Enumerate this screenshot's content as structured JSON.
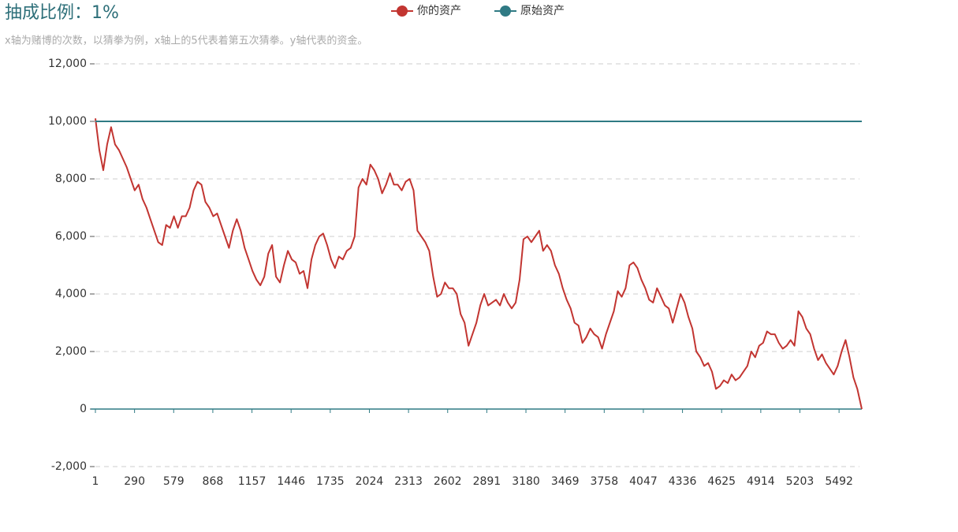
{
  "chart_data": {
    "type": "line",
    "title": "抽成比例：1%",
    "subtitle": "x轴为赌博的次数，以猜拳为例，x轴上的5代表着第五次猜拳。y轴代表的资金。",
    "xlim": [
      1,
      5660
    ],
    "xticks": [
      1,
      290,
      579,
      868,
      1157,
      1446,
      1735,
      2024,
      2313,
      2602,
      2891,
      3180,
      3469,
      3758,
      4047,
      4336,
      4625,
      4914,
      5203,
      5492
    ],
    "ylim": [
      -2000,
      12000
    ],
    "yticks": [
      {
        "value": -2000,
        "label": "-2,000"
      },
      0,
      {
        "value": 2000,
        "label": "2,000"
      },
      {
        "value": 4000,
        "label": "4,000"
      },
      {
        "value": 6000,
        "label": "6,000"
      },
      {
        "value": 8000,
        "label": "8,000"
      },
      {
        "value": 10000,
        "label": "10,000"
      },
      {
        "value": 12000,
        "label": "12,000"
      }
    ],
    "grid": true,
    "legend": "top",
    "series": [
      {
        "name": "你的资产",
        "color": "#c23531",
        "x": [
          1,
          30,
          59,
          88,
          117,
          146,
          175,
          204,
          233,
          262,
          291,
          320,
          349,
          378,
          407,
          436,
          465,
          494,
          523,
          552,
          581,
          610,
          639,
          668,
          697,
          726,
          755,
          784,
          813,
          842,
          871,
          900,
          929,
          958,
          987,
          1016,
          1045,
          1074,
          1103,
          1132,
          1161,
          1190,
          1219,
          1248,
          1277,
          1306,
          1335,
          1364,
          1393,
          1422,
          1451,
          1480,
          1509,
          1538,
          1567,
          1596,
          1625,
          1654,
          1683,
          1712,
          1741,
          1770,
          1799,
          1828,
          1857,
          1886,
          1915,
          1944,
          1973,
          2002,
          2031,
          2060,
          2089,
          2118,
          2147,
          2176,
          2205,
          2234,
          2263,
          2292,
          2321,
          2350,
          2379,
          2408,
          2437,
          2466,
          2495,
          2524,
          2553,
          2582,
          2611,
          2640,
          2669,
          2698,
          2727,
          2756,
          2785,
          2814,
          2843,
          2872,
          2901,
          2930,
          2959,
          2988,
          3017,
          3046,
          3075,
          3104,
          3133,
          3162,
          3191,
          3220,
          3249,
          3278,
          3307,
          3336,
          3365,
          3394,
          3423,
          3452,
          3481,
          3510,
          3539,
          3568,
          3597,
          3626,
          3655,
          3684,
          3713,
          3742,
          3771,
          3800,
          3829,
          3858,
          3887,
          3916,
          3945,
          3974,
          4003,
          4032,
          4061,
          4090,
          4119,
          4148,
          4177,
          4206,
          4235,
          4264,
          4293,
          4322,
          4351,
          4380,
          4409,
          4438,
          4467,
          4496,
          4525,
          4554,
          4583,
          4612,
          4641,
          4670,
          4699,
          4728,
          4757,
          4786,
          4815,
          4844,
          4873,
          4902,
          4931,
          4960,
          4989,
          5018,
          5047,
          5076,
          5105,
          5134,
          5163,
          5192,
          5221,
          5250,
          5279,
          5308,
          5337,
          5366,
          5395,
          5424,
          5453,
          5482,
          5511,
          5540,
          5569,
          5598,
          5627,
          5660
        ],
        "values": [
          10100,
          9000,
          8300,
          9200,
          9800,
          9200,
          9000,
          8700,
          8400,
          8000,
          7600,
          7800,
          7300,
          7000,
          6600,
          6200,
          5800,
          5700,
          6400,
          6300,
          6700,
          6300,
          6700,
          6700,
          7000,
          7600,
          7900,
          7800,
          7200,
          7000,
          6700,
          6800,
          6400,
          6000,
          5600,
          6200,
          6600,
          6200,
          5600,
          5200,
          4800,
          4500,
          4300,
          4600,
          5400,
          5700,
          4600,
          4400,
          5000,
          5500,
          5200,
          5100,
          4700,
          4800,
          4200,
          5200,
          5700,
          6000,
          6100,
          5700,
          5200,
          4900,
          5300,
          5200,
          5500,
          5600,
          6000,
          7700,
          8000,
          7800,
          8500,
          8300,
          8000,
          7500,
          7800,
          8200,
          7800,
          7800,
          7600,
          7900,
          8000,
          7600,
          6200,
          6000,
          5800,
          5500,
          4600,
          3900,
          4000,
          4400,
          4200,
          4200,
          4000,
          3300,
          3000,
          2200,
          2600,
          3000,
          3600,
          4000,
          3600,
          3700,
          3800,
          3600,
          4000,
          3700,
          3500,
          3700,
          4500,
          5900,
          6000,
          5800,
          6000,
          6200,
          5500,
          5700,
          5500,
          5000,
          4700,
          4200,
          3800,
          3500,
          3000,
          2900,
          2300,
          2500,
          2800,
          2600,
          2500,
          2100,
          2600,
          3000,
          3400,
          4100,
          3900,
          4200,
          5000,
          5100,
          4900,
          4500,
          4200,
          3800,
          3700,
          4200,
          3900,
          3600,
          3500,
          3000,
          3500,
          4000,
          3700,
          3200,
          2800,
          2000,
          1800,
          1500,
          1600,
          1300,
          700,
          800,
          1000,
          900,
          1200,
          1000,
          1100,
          1300,
          1500,
          2000,
          1800,
          2200,
          2300,
          2700,
          2600,
          2600,
          2300,
          2100,
          2200,
          2400,
          2200,
          3400,
          3200,
          2800,
          2600,
          2100,
          1700,
          1900,
          1600,
          1400,
          1200,
          1500,
          2000,
          2400,
          1800,
          1100,
          700,
          0
        ]
      },
      {
        "name": "原始资产",
        "color": "#2f7a84",
        "x": [
          1,
          5660
        ],
        "values": [
          10000,
          10000
        ]
      }
    ]
  }
}
